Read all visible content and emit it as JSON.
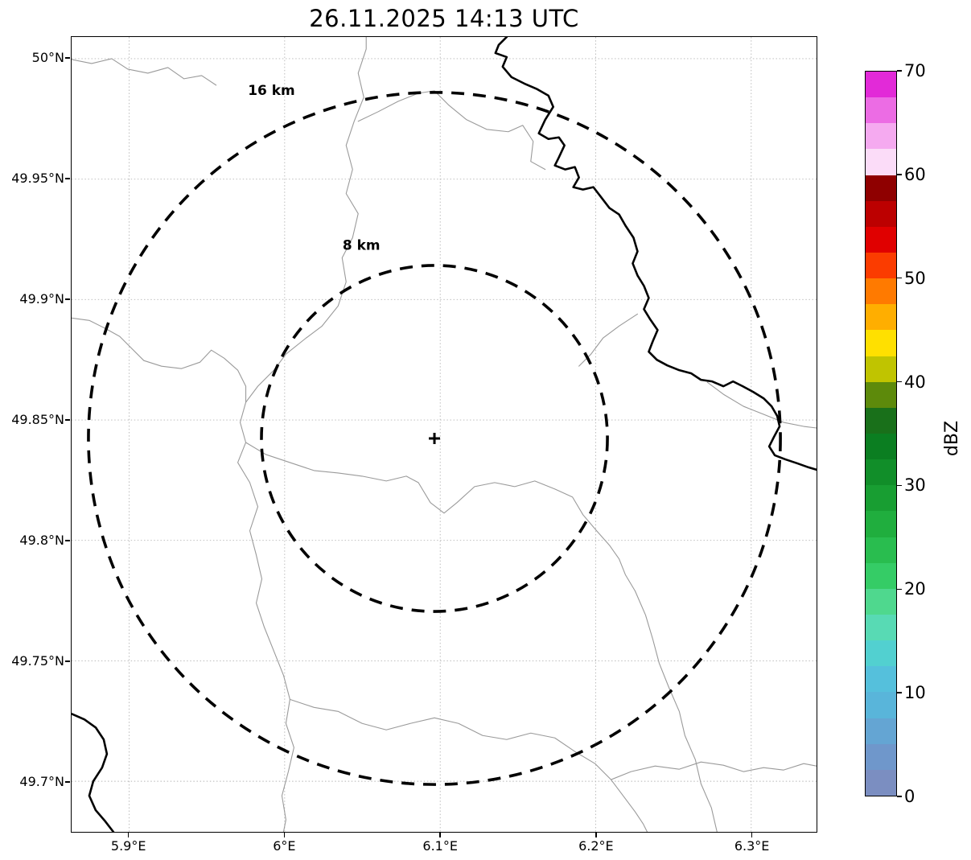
{
  "title": "26.11.2025 14:13 UTC",
  "map": {
    "outer_ring_label": "16 km",
    "inner_ring_label": "8 km",
    "outer_ring_radius_km": 16,
    "inner_ring_radius_km": 8,
    "radar_center": {
      "lon": "6.1°E",
      "lat": "49.84°N"
    }
  },
  "axes": {
    "x_ticks": [
      "5.9°E",
      "6°E",
      "6.1°E",
      "6.2°E",
      "6.3°E"
    ],
    "y_ticks": [
      "50°N",
      "49.95°N",
      "49.9°N",
      "49.85°N",
      "49.8°N",
      "49.75°N",
      "49.7°N"
    ]
  },
  "colorbar": {
    "label": "dBZ",
    "min": 0,
    "max": 70,
    "ticks": [
      "70",
      "60",
      "50",
      "40",
      "30",
      "20",
      "10",
      "0"
    ],
    "colors_top_to_bottom": [
      "#e22ad8",
      "#ec6ce4",
      "#f5aaf0",
      "#fbdcf8",
      "#8f0000",
      "#bc0000",
      "#e00000",
      "#fb3c00",
      "#ff7a00",
      "#ffae00",
      "#ffe000",
      "#c0c400",
      "#5d8a0b",
      "#19701a",
      "#0b7e21",
      "#118e29",
      "#189e32",
      "#20ae3e",
      "#29bd4f",
      "#35cc66",
      "#4fd88e",
      "#58dab4",
      "#52d0d0",
      "#55c0dc",
      "#59b5da",
      "#64a5d3",
      "#6f97cb",
      "#7b8ec1"
    ]
  },
  "chart_data": {
    "type": "heatmap",
    "title": "26.11.2025 14:13 UTC",
    "x_tick_labels": [
      "5.9°E",
      "6°E",
      "6.1°E",
      "6.2°E",
      "6.3°E"
    ],
    "y_tick_labels": [
      "50°N",
      "49.95°N",
      "49.9°N",
      "49.85°N",
      "49.8°N",
      "49.75°N",
      "49.7°N"
    ],
    "colorbar_label": "dBZ",
    "colorbar_range": [
      0,
      70
    ],
    "range_rings_km": [
      8,
      16
    ],
    "radar_center": {
      "lon_deg_e": 6.1,
      "lat_deg_n": 49.84
    },
    "reflectivity_echoes": "none visible (clear radar image, basemap only)",
    "grid": "on",
    "legend_position": "right colorbar"
  }
}
